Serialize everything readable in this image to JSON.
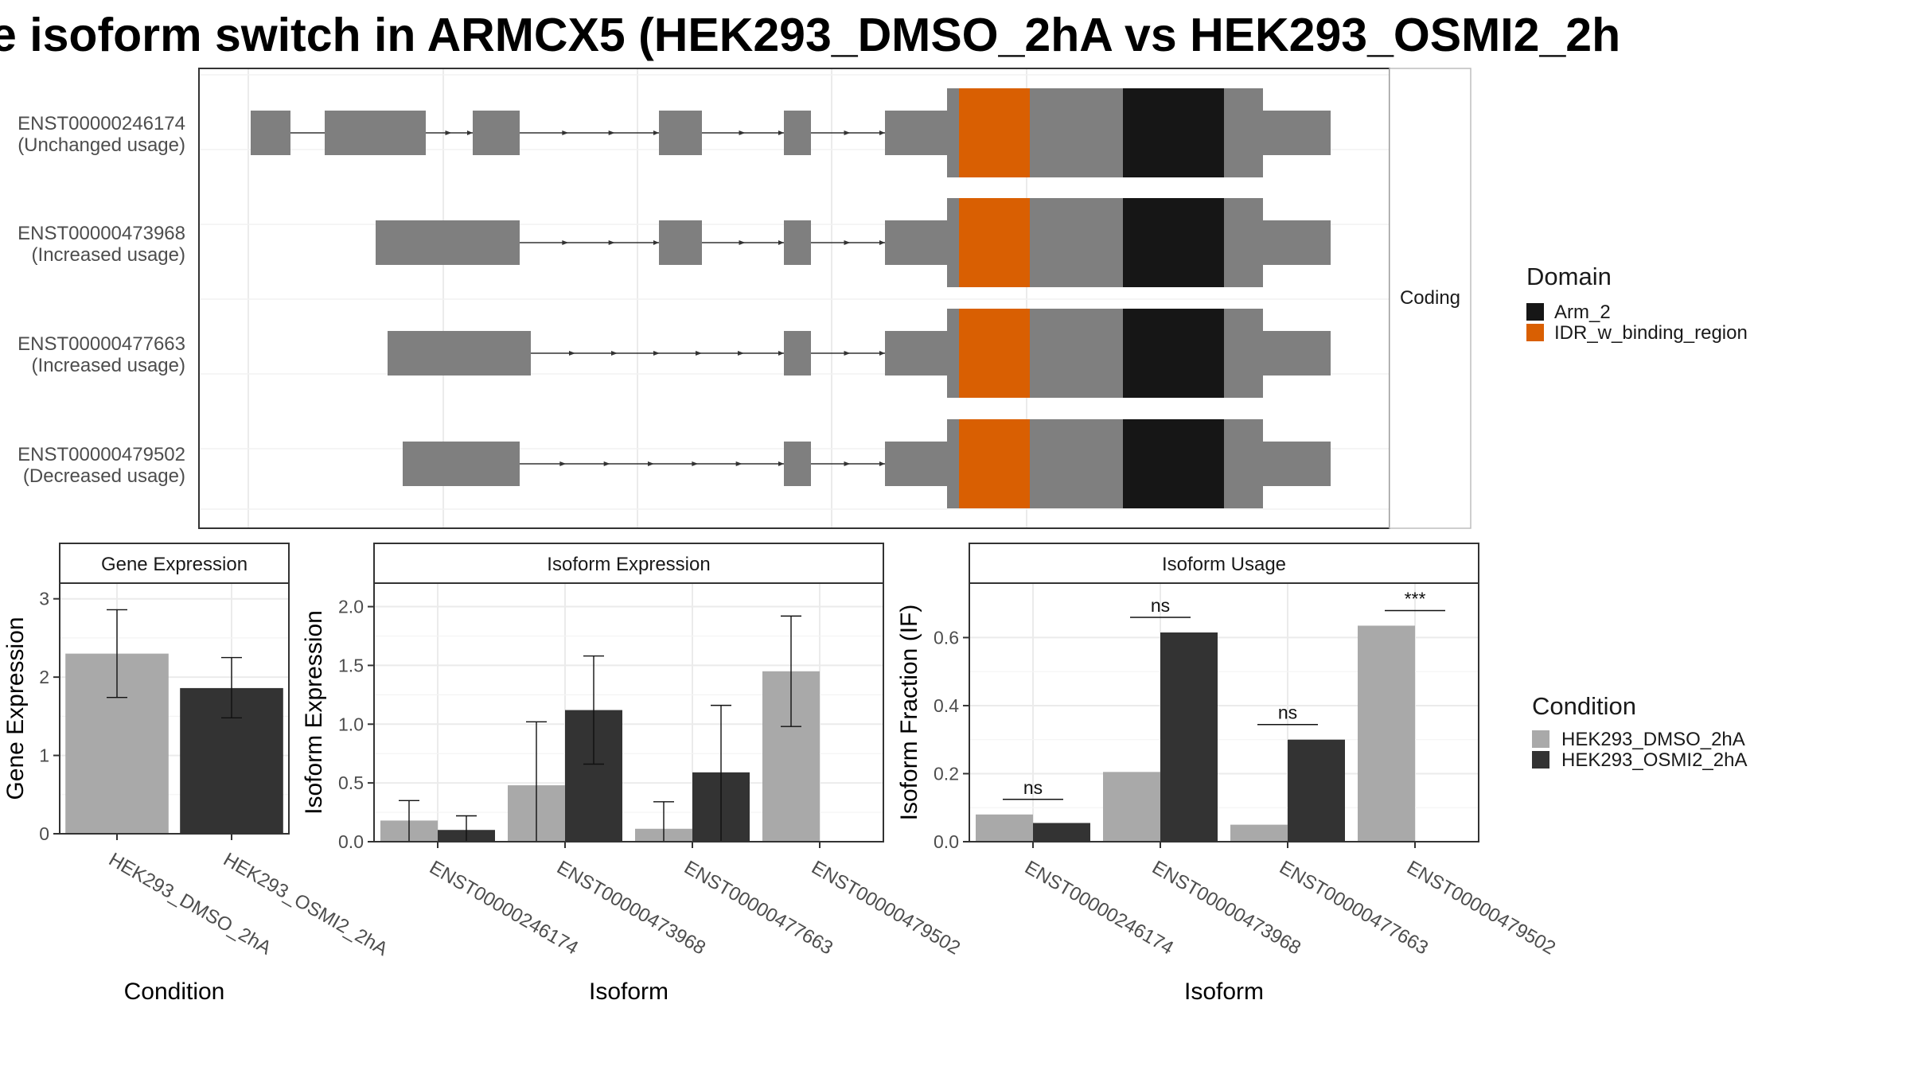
{
  "title": "e isoform switch in ARMCX5 (HEK293_DMSO_2hA vs HEK293_OSMI2_2h",
  "colors": {
    "exon": "#7f7f7f",
    "arm2": "#161616",
    "idr": "#d95f02",
    "dmso": "#a9a9a9",
    "osmi2": "#333333"
  },
  "chart_data": [
    {
      "type": "gene-structure",
      "strip_label": "Coding",
      "legend": {
        "title": "Domain",
        "items": [
          {
            "label": "Arm_2",
            "color": "#161616"
          },
          {
            "label": "IDR_w_binding_region",
            "color": "#d95f02"
          }
        ]
      },
      "transcripts": [
        {
          "id": "ENST00000246174",
          "usage": "(Unchanged usage)"
        },
        {
          "id": "ENST00000473968",
          "usage": "(Increased usage)"
        },
        {
          "id": "ENST00000477663",
          "usage": "(Increased usage)"
        },
        {
          "id": "ENST00000479502",
          "usage": "(Decreased usage)"
        }
      ]
    },
    {
      "type": "bar",
      "strip_label": "Gene Expression",
      "xlabel": "Condition",
      "ylabel": "Gene Expression",
      "ylim": [
        0,
        3.2
      ],
      "yticks": [
        0,
        1,
        2,
        3
      ],
      "categories": [
        "HEK293_DMSO_2hA",
        "HEK293_OSMI2_2hA"
      ],
      "values": [
        2.3,
        1.86
      ],
      "error_low": [
        1.74,
        1.48
      ],
      "error_high": [
        2.86,
        2.25
      ]
    },
    {
      "type": "bar",
      "strip_label": "Isoform Expression",
      "xlabel": "Isoform",
      "ylabel": "Isoform Expression",
      "ylim": [
        0,
        2.2
      ],
      "yticks": [
        0.0,
        0.5,
        1.0,
        1.5,
        2.0
      ],
      "categories": [
        "ENST00000246174",
        "ENST00000473968",
        "ENST00000477663",
        "ENST00000479502"
      ],
      "series": [
        {
          "name": "HEK293_DMSO_2hA",
          "values": [
            0.18,
            0.48,
            0.11,
            1.45
          ],
          "error_low": [
            0.0,
            0.0,
            0.0,
            0.98
          ],
          "error_high": [
            0.35,
            1.02,
            0.34,
            1.92
          ]
        },
        {
          "name": "HEK293_OSMI2_2hA",
          "values": [
            0.1,
            1.12,
            0.59,
            0.0
          ],
          "error_low": [
            0.0,
            0.66,
            0.0,
            0.0
          ],
          "error_high": [
            0.22,
            1.58,
            1.16,
            0.0
          ]
        }
      ]
    },
    {
      "type": "bar",
      "strip_label": "Isoform Usage",
      "xlabel": "Isoform",
      "ylabel": "Isoform Fraction (IF)",
      "ylim": [
        0,
        0.76
      ],
      "yticks": [
        0.0,
        0.2,
        0.4,
        0.6
      ],
      "categories": [
        "ENST00000246174",
        "ENST00000473968",
        "ENST00000477663",
        "ENST00000479502"
      ],
      "series": [
        {
          "name": "HEK293_DMSO_2hA",
          "values": [
            0.08,
            0.205,
            0.05,
            0.635
          ]
        },
        {
          "name": "HEK293_OSMI2_2hA",
          "values": [
            0.055,
            0.615,
            0.3,
            0.0
          ]
        }
      ],
      "significance": [
        "ns",
        "ns",
        "ns",
        "***"
      ],
      "legend": {
        "title": "Condition",
        "items": [
          {
            "label": "HEK293_DMSO_2hA",
            "color": "#a9a9a9"
          },
          {
            "label": "HEK293_OSMI2_2hA",
            "color": "#333333"
          }
        ]
      }
    }
  ]
}
